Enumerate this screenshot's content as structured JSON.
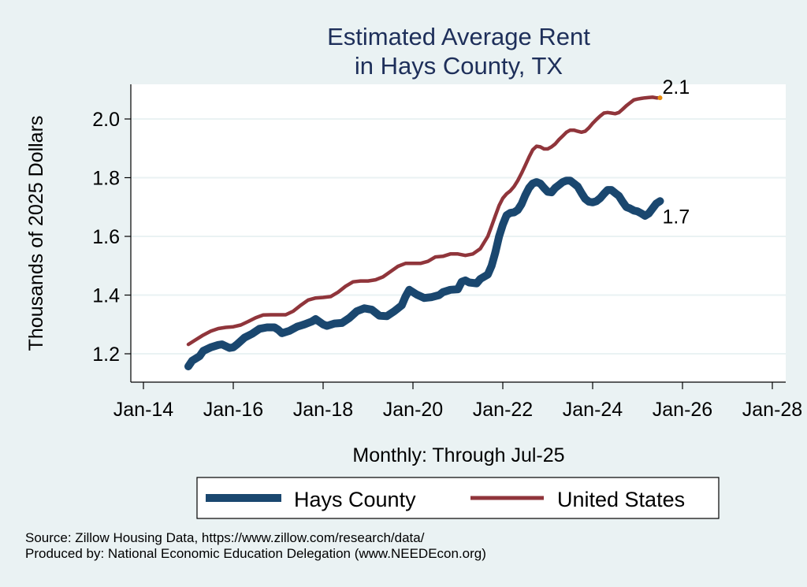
{
  "chart_data": {
    "type": "line",
    "title": [
      "Estimated Average Rent",
      "in Hays County, TX"
    ],
    "xlabel": "Monthly: Through Jul-25",
    "ylabel": "Thousands of 2025 Dollars",
    "x_unit": "months since Jan-14",
    "xlim": [
      0,
      168
    ],
    "ylim": [
      1.11,
      2.12
    ],
    "grid": true,
    "x_ticks": [
      {
        "m": 0,
        "label": "Jan-14"
      },
      {
        "m": 24,
        "label": "Jan-16"
      },
      {
        "m": 48,
        "label": "Jan-18"
      },
      {
        "m": 72,
        "label": "Jan-20"
      },
      {
        "m": 96,
        "label": "Jan-22"
      },
      {
        "m": 120,
        "label": "Jan-24"
      },
      {
        "m": 144,
        "label": "Jan-26"
      },
      {
        "m": 168,
        "label": "Jan-28"
      }
    ],
    "y_ticks": [
      {
        "v": 1.2,
        "label": "1.2"
      },
      {
        "v": 1.4,
        "label": "1.4"
      },
      {
        "v": 1.6,
        "label": "1.6"
      },
      {
        "v": 1.8,
        "label": "1.8"
      },
      {
        "v": 2.0,
        "label": "2.0"
      }
    ],
    "series": [
      {
        "name": "Hays County",
        "color": "#1a476f",
        "end_label": "1.7",
        "points": [
          [
            12,
            1.157
          ],
          [
            13,
            1.176
          ],
          [
            15,
            1.192
          ],
          [
            16,
            1.21
          ],
          [
            18,
            1.222
          ],
          [
            20,
            1.23
          ],
          [
            21,
            1.232
          ],
          [
            23,
            1.22
          ],
          [
            24,
            1.222
          ],
          [
            25,
            1.232
          ],
          [
            27,
            1.255
          ],
          [
            29,
            1.268
          ],
          [
            31,
            1.285
          ],
          [
            33,
            1.29
          ],
          [
            35,
            1.29
          ],
          [
            36,
            1.282
          ],
          [
            37,
            1.27
          ],
          [
            39,
            1.278
          ],
          [
            41,
            1.292
          ],
          [
            43,
            1.3
          ],
          [
            45,
            1.31
          ],
          [
            46,
            1.318
          ],
          [
            48,
            1.3
          ],
          [
            49,
            1.295
          ],
          [
            51,
            1.303
          ],
          [
            53,
            1.305
          ],
          [
            55,
            1.322
          ],
          [
            57,
            1.345
          ],
          [
            59,
            1.355
          ],
          [
            61,
            1.35
          ],
          [
            63,
            1.33
          ],
          [
            65,
            1.328
          ],
          [
            67,
            1.345
          ],
          [
            69,
            1.365
          ],
          [
            70,
            1.395
          ],
          [
            71,
            1.418
          ],
          [
            73,
            1.402
          ],
          [
            75,
            1.39
          ],
          [
            77,
            1.393
          ],
          [
            79,
            1.4
          ],
          [
            80,
            1.41
          ],
          [
            82,
            1.418
          ],
          [
            84,
            1.42
          ],
          [
            85,
            1.445
          ],
          [
            86,
            1.45
          ],
          [
            87,
            1.443
          ],
          [
            89,
            1.44
          ],
          [
            90,
            1.455
          ],
          [
            92,
            1.47
          ],
          [
            93,
            1.5
          ],
          [
            94,
            1.545
          ],
          [
            95,
            1.6
          ],
          [
            96,
            1.64
          ],
          [
            97,
            1.672
          ],
          [
            98,
            1.68
          ],
          [
            99,
            1.682
          ],
          [
            100,
            1.69
          ],
          [
            101,
            1.71
          ],
          [
            102,
            1.74
          ],
          [
            103,
            1.765
          ],
          [
            104,
            1.78
          ],
          [
            105,
            1.785
          ],
          [
            106,
            1.78
          ],
          [
            107,
            1.765
          ],
          [
            108,
            1.752
          ],
          [
            109,
            1.75
          ],
          [
            110,
            1.765
          ],
          [
            111,
            1.775
          ],
          [
            112,
            1.785
          ],
          [
            113,
            1.79
          ],
          [
            114,
            1.79
          ],
          [
            115,
            1.78
          ],
          [
            116,
            1.77
          ],
          [
            117,
            1.748
          ],
          [
            118,
            1.728
          ],
          [
            119,
            1.718
          ],
          [
            120,
            1.716
          ],
          [
            121,
            1.72
          ],
          [
            122,
            1.73
          ],
          [
            123,
            1.745
          ],
          [
            124,
            1.758
          ],
          [
            125,
            1.758
          ],
          [
            126,
            1.748
          ],
          [
            127,
            1.738
          ],
          [
            128,
            1.718
          ],
          [
            129,
            1.7
          ],
          [
            130,
            1.695
          ],
          [
            131,
            1.688
          ],
          [
            132,
            1.685
          ],
          [
            133,
            1.678
          ],
          [
            134,
            1.67
          ],
          [
            135,
            1.678
          ],
          [
            136,
            1.695
          ],
          [
            137,
            1.712
          ],
          [
            138,
            1.72
          ]
        ]
      },
      {
        "name": "United States",
        "color": "#90353b",
        "end_label": "2.1",
        "end_marker_color": "#e88a0c",
        "points": [
          [
            12,
            1.232
          ],
          [
            14,
            1.248
          ],
          [
            16,
            1.264
          ],
          [
            18,
            1.277
          ],
          [
            20,
            1.286
          ],
          [
            22,
            1.29
          ],
          [
            24,
            1.292
          ],
          [
            26,
            1.298
          ],
          [
            28,
            1.31
          ],
          [
            30,
            1.323
          ],
          [
            32,
            1.332
          ],
          [
            34,
            1.333
          ],
          [
            36,
            1.333
          ],
          [
            38,
            1.333
          ],
          [
            40,
            1.345
          ],
          [
            42,
            1.365
          ],
          [
            44,
            1.383
          ],
          [
            46,
            1.39
          ],
          [
            48,
            1.392
          ],
          [
            50,
            1.395
          ],
          [
            52,
            1.41
          ],
          [
            54,
            1.43
          ],
          [
            56,
            1.445
          ],
          [
            58,
            1.448
          ],
          [
            60,
            1.448
          ],
          [
            62,
            1.452
          ],
          [
            64,
            1.462
          ],
          [
            66,
            1.48
          ],
          [
            68,
            1.498
          ],
          [
            70,
            1.508
          ],
          [
            72,
            1.508
          ],
          [
            74,
            1.508
          ],
          [
            76,
            1.515
          ],
          [
            78,
            1.53
          ],
          [
            80,
            1.532
          ],
          [
            82,
            1.54
          ],
          [
            84,
            1.54
          ],
          [
            86,
            1.535
          ],
          [
            88,
            1.54
          ],
          [
            90,
            1.558
          ],
          [
            92,
            1.6
          ],
          [
            93,
            1.635
          ],
          [
            94,
            1.67
          ],
          [
            95,
            1.705
          ],
          [
            96,
            1.73
          ],
          [
            97,
            1.745
          ],
          [
            98,
            1.755
          ],
          [
            99,
            1.77
          ],
          [
            100,
            1.79
          ],
          [
            101,
            1.815
          ],
          [
            102,
            1.842
          ],
          [
            103,
            1.87
          ],
          [
            104,
            1.895
          ],
          [
            105,
            1.907
          ],
          [
            106,
            1.905
          ],
          [
            107,
            1.898
          ],
          [
            108,
            1.898
          ],
          [
            109,
            1.905
          ],
          [
            110,
            1.915
          ],
          [
            111,
            1.93
          ],
          [
            112,
            1.942
          ],
          [
            113,
            1.955
          ],
          [
            114,
            1.962
          ],
          [
            115,
            1.962
          ],
          [
            116,
            1.958
          ],
          [
            117,
            1.955
          ],
          [
            118,
            1.958
          ],
          [
            119,
            1.97
          ],
          [
            120,
            1.985
          ],
          [
            121,
            1.998
          ],
          [
            122,
            2.01
          ],
          [
            123,
            2.02
          ],
          [
            124,
            2.022
          ],
          [
            125,
            2.02
          ],
          [
            126,
            2.018
          ],
          [
            127,
            2.022
          ],
          [
            128,
            2.033
          ],
          [
            129,
            2.045
          ],
          [
            130,
            2.055
          ],
          [
            131,
            2.065
          ],
          [
            132,
            2.068
          ],
          [
            133,
            2.07
          ],
          [
            134,
            2.072
          ],
          [
            135,
            2.073
          ],
          [
            136,
            2.074
          ],
          [
            137,
            2.072
          ],
          [
            138,
            2.072
          ]
        ]
      }
    ],
    "legend": {
      "position": "bottom",
      "entries": [
        "Hays County",
        "United States"
      ]
    }
  },
  "footer": {
    "source": "Source: Zillow Housing Data, https://www.zillow.com/research/data/",
    "producer": "Produced by: National Economic Education Delegation (www.NEEDEcon.org)"
  }
}
